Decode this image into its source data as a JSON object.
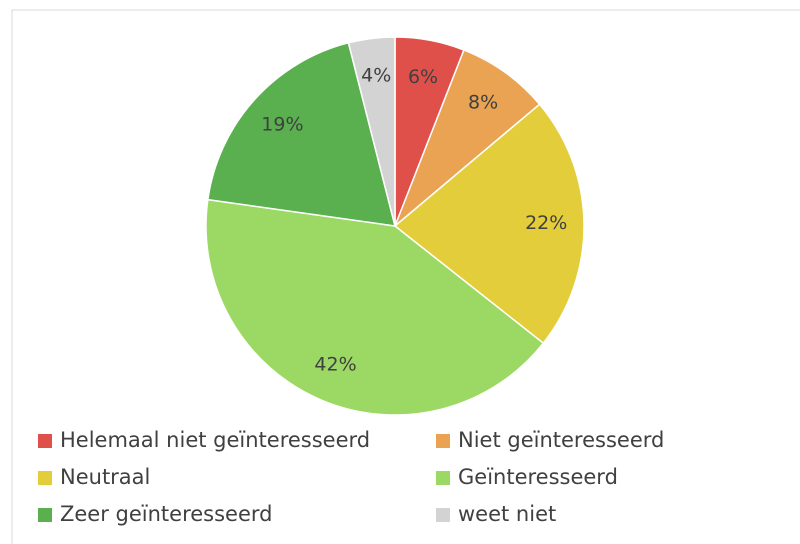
{
  "chart_data": {
    "type": "pie",
    "categories": [
      "Helemaal niet geïnteresseerd",
      "Niet geïnteresseerd",
      "Neutraal",
      "Geïnteresseerd",
      "Zeer geïnteresseerd",
      "weet niet"
    ],
    "values": [
      6,
      8,
      22,
      42,
      19,
      4
    ],
    "value_labels": [
      "6%",
      "8%",
      "22%",
      "42%",
      "19%",
      "4%"
    ],
    "colors": [
      "#e0504a",
      "#e9a352",
      "#e4cd3a",
      "#9bd964",
      "#5aaf4f",
      "#d3d3d3"
    ],
    "legend": "bottom"
  }
}
